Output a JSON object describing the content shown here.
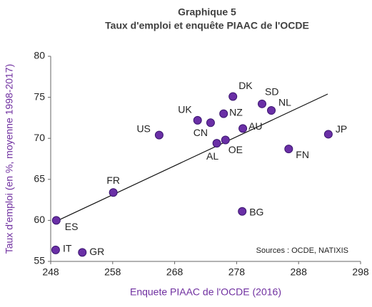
{
  "chart_data": {
    "type": "scatter",
    "title": "Graphique 5",
    "subtitle": "Taux d'emploi et enquête PIAAC de l'OCDE",
    "x_label": "Enquete PIAAC de l'OCDE (2016)",
    "y_label": "Taux d'emploi (en %, moyenne 1998-2017)",
    "annotation": "Sources : OCDE, NATIXIS",
    "color": "#6a2fa6",
    "labels": [
      "ES",
      "IT",
      "GR",
      "FR",
      "US",
      "UK",
      "CN",
      "AL",
      "OE",
      "NZ",
      "DK",
      "AU",
      "BG",
      "SD",
      "NL",
      "FN",
      "JP"
    ],
    "x": [
      248.9,
      248.8,
      253.1,
      258.1,
      265.5,
      271.7,
      273.8,
      274.8,
      276.2,
      275.9,
      277.4,
      279.0,
      278.9,
      282.1,
      283.6,
      286.4,
      292.8
    ],
    "values": [
      60.0,
      56.4,
      56.1,
      63.4,
      70.4,
      72.2,
      71.9,
      69.4,
      69.8,
      73.0,
      75.1,
      71.2,
      61.1,
      74.2,
      73.4,
      68.7,
      70.5
    ],
    "trend_line": {
      "x": [
        248.9,
        292.7
      ],
      "y": [
        59.9,
        75.4
      ]
    },
    "xlim": [
      248,
      298
    ],
    "xticks": [
      248,
      258,
      268,
      278,
      288,
      298
    ],
    "ylim": [
      55,
      80
    ],
    "yticks": [
      55,
      60,
      65,
      70,
      75,
      80
    ]
  }
}
